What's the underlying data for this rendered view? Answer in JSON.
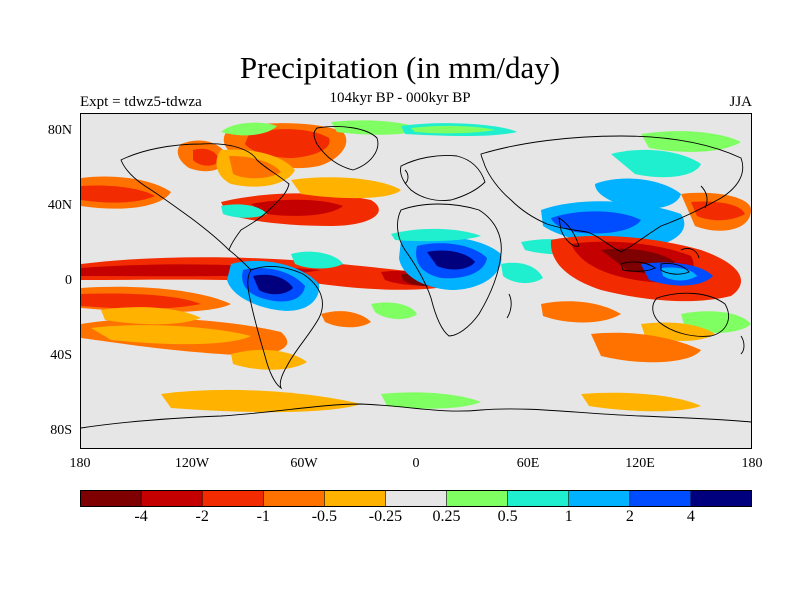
{
  "title": "Precipitation (in mm/day)",
  "subtitle": "104kyr BP - 000kyr BP",
  "left_label": "Expt = tdwz5-tdwza",
  "right_label": "JJA",
  "lat_ticks": [
    "80N",
    "40N",
    "0",
    "40S",
    "80S"
  ],
  "lon_ticks": [
    "180",
    "120W",
    "60W",
    "0",
    "60E",
    "120E",
    "180"
  ],
  "colorbar": {
    "colors": [
      "#7f0000",
      "#c40000",
      "#f22c00",
      "#ff7200",
      "#ffb300",
      "#e6e6e6",
      "#7fff62",
      "#1fefcf",
      "#00b2ff",
      "#004cff",
      "#00007f"
    ],
    "labels": [
      "-4",
      "-2",
      "-1",
      "-0.5",
      "-0.25",
      "0.25",
      "0.5",
      "1",
      "2",
      "4"
    ]
  },
  "colors": {
    "ocean_background": "#e6e6e6",
    "coastline": "#000000"
  }
}
